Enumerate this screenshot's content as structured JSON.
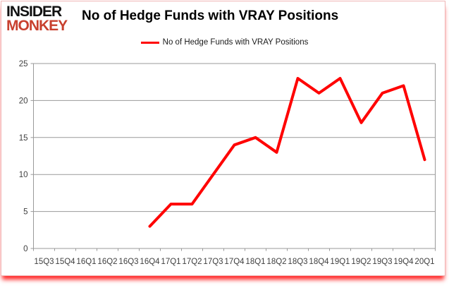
{
  "logo": {
    "line1": "INSIDER",
    "line2": "MONKEY",
    "line1_color": "#111111",
    "line2_color": "#c8402e"
  },
  "header": {
    "title": "No of Hedge Funds with VRAY Positions"
  },
  "legend": {
    "label": "No of Hedge Funds with VRAY Positions",
    "marker_color": "#ff0000"
  },
  "chart_data": {
    "type": "line",
    "title": "No of Hedge Funds with VRAY Positions",
    "categories": [
      "15Q3",
      "15Q4",
      "16Q1",
      "16Q2",
      "16Q3",
      "16Q4",
      "17Q1",
      "17Q2",
      "17Q3",
      "17Q4",
      "18Q1",
      "18Q2",
      "18Q3",
      "18Q4",
      "19Q1",
      "19Q2",
      "19Q3",
      "19Q4",
      "20Q1"
    ],
    "series": [
      {
        "name": "No of Hedge Funds with VRAY Positions",
        "color": "#ff0000",
        "values": [
          null,
          null,
          null,
          null,
          null,
          3,
          6,
          6,
          10,
          14,
          15,
          13,
          23,
          21,
          23,
          17,
          21,
          22,
          12
        ]
      }
    ],
    "xlabel": "",
    "ylabel": "",
    "ylim": [
      0,
      25
    ],
    "ytick_interval": 5,
    "yticks": [
      0,
      5,
      10,
      15,
      20,
      25
    ],
    "grid": "horizontal-only",
    "legend_position": "top-center",
    "grid_color": "#9a9a9a",
    "axis_color": "#9a9a9a",
    "tick_label_color": "#404040"
  }
}
